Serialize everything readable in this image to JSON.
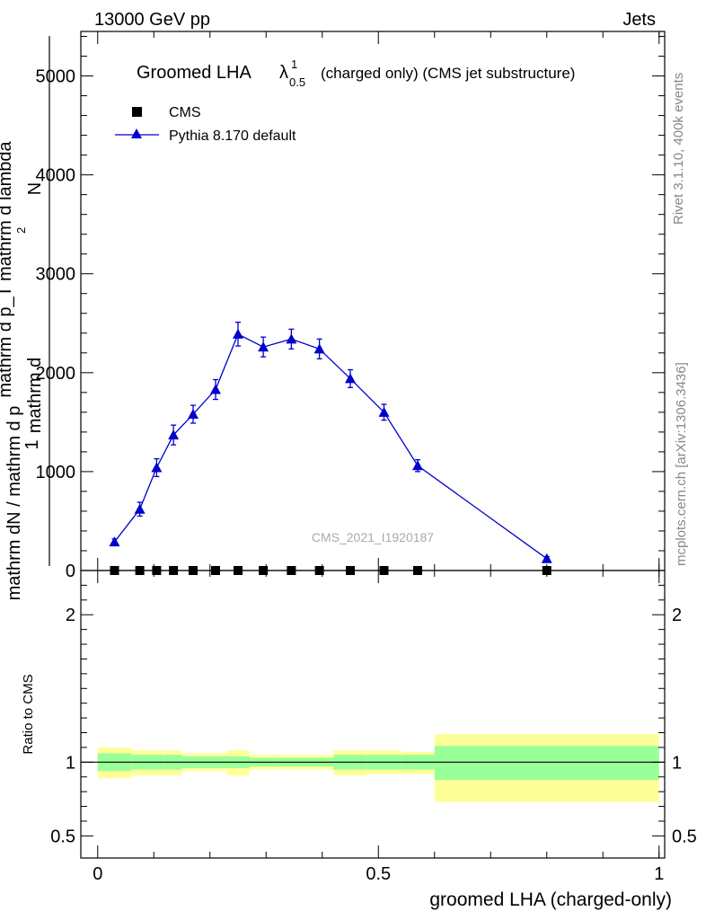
{
  "header": {
    "left": "13000 GeV pp",
    "right": "Jets"
  },
  "side_labels": {
    "rivet": "Rivet 3.1.10,  400k events",
    "mcplots": "mcplots.cern.ch [arXiv:1306.3436]"
  },
  "watermark": "CMS_2021_I1920187",
  "title": {
    "main": "Groomed LHA",
    "lambda": "λ",
    "superscript": "1",
    "subscript": "0.5",
    "suffix": "(charged only) (CMS jet substructure)"
  },
  "legend": [
    {
      "name": "CMS",
      "color": "#000000",
      "marker": "square"
    },
    {
      "name": "Pythia 8.170 default",
      "color": "#0000cc",
      "marker": "triangle"
    }
  ],
  "y_axis_label": {
    "numerator_top": "mathrm d",
    "numerator_sup": "2",
    "numerator_bottom": "N",
    "denominator": "mathrm d p_T mathrm d lambda",
    "denominator_sub": "T",
    "prefix_num": "1",
    "prefix_den": "mathrm dN / mathrm d p",
    "prefix_den2": "mathrm d p",
    "prefix_sub": "T"
  },
  "ratio_y_label": "Ratio to CMS",
  "x_label": "groomed LHA (charged-only)",
  "chart_data": {
    "type": "line",
    "main": {
      "xlim": [
        -0.03,
        1.01
      ],
      "ylim": [
        0,
        5450
      ],
      "y_ticks": [
        0,
        1000,
        2000,
        3000,
        4000,
        5000
      ],
      "y_tick_labels": [
        "0",
        "1000",
        "2000",
        "3000",
        "4000",
        "5000"
      ],
      "series": [
        {
          "name": "CMS",
          "x": [
            0.03,
            0.075,
            0.105,
            0.135,
            0.17,
            0.21,
            0.25,
            0.295,
            0.345,
            0.395,
            0.45,
            0.51,
            0.57,
            0.8
          ],
          "y": [
            0,
            0,
            0,
            0,
            0,
            0,
            0,
            0,
            0,
            0,
            0,
            0,
            0,
            0
          ]
        },
        {
          "name": "Pythia 8.170 default",
          "x": [
            0.03,
            0.075,
            0.105,
            0.135,
            0.17,
            0.21,
            0.25,
            0.295,
            0.345,
            0.395,
            0.45,
            0.51,
            0.57,
            0.8
          ],
          "y": [
            290,
            620,
            1040,
            1370,
            1580,
            1830,
            2390,
            2260,
            2340,
            2240,
            1940,
            1600,
            1060,
            120
          ],
          "yerr": [
            30,
            70,
            90,
            100,
            90,
            100,
            120,
            100,
            100,
            100,
            90,
            80,
            60,
            20
          ]
        }
      ]
    },
    "ratio": {
      "ylim": [
        0.35,
        2.3
      ],
      "y_ticks": [
        0.5,
        1,
        2
      ],
      "y_tick_labels": [
        "0.5",
        "1",
        "2"
      ],
      "x_ticks": [
        0,
        0.5,
        1
      ],
      "x_tick_labels": [
        "0",
        "0.5",
        "1"
      ],
      "bands": [
        {
          "xlo": 0.0,
          "xhi": 0.06,
          "stat_lo": 0.94,
          "stat_hi": 1.06,
          "tot_lo": 0.89,
          "tot_hi": 1.1
        },
        {
          "xlo": 0.06,
          "xhi": 0.09,
          "stat_lo": 0.95,
          "stat_hi": 1.05,
          "tot_lo": 0.91,
          "tot_hi": 1.08
        },
        {
          "xlo": 0.09,
          "xhi": 0.12,
          "stat_lo": 0.95,
          "stat_hi": 1.05,
          "tot_lo": 0.91,
          "tot_hi": 1.08
        },
        {
          "xlo": 0.12,
          "xhi": 0.15,
          "stat_lo": 0.95,
          "stat_hi": 1.05,
          "tot_lo": 0.91,
          "tot_hi": 1.08
        },
        {
          "xlo": 0.15,
          "xhi": 0.19,
          "stat_lo": 0.96,
          "stat_hi": 1.04,
          "tot_lo": 0.94,
          "tot_hi": 1.06
        },
        {
          "xlo": 0.19,
          "xhi": 0.23,
          "stat_lo": 0.96,
          "stat_hi": 1.04,
          "tot_lo": 0.94,
          "tot_hi": 1.06
        },
        {
          "xlo": 0.23,
          "xhi": 0.27,
          "stat_lo": 0.96,
          "stat_hi": 1.04,
          "tot_lo": 0.91,
          "tot_hi": 1.08
        },
        {
          "xlo": 0.27,
          "xhi": 0.32,
          "stat_lo": 0.97,
          "stat_hi": 1.03,
          "tot_lo": 0.95,
          "tot_hi": 1.05
        },
        {
          "xlo": 0.32,
          "xhi": 0.37,
          "stat_lo": 0.97,
          "stat_hi": 1.03,
          "tot_lo": 0.95,
          "tot_hi": 1.05
        },
        {
          "xlo": 0.37,
          "xhi": 0.42,
          "stat_lo": 0.97,
          "stat_hi": 1.03,
          "tot_lo": 0.95,
          "tot_hi": 1.05
        },
        {
          "xlo": 0.42,
          "xhi": 0.48,
          "stat_lo": 0.95,
          "stat_hi": 1.05,
          "tot_lo": 0.91,
          "tot_hi": 1.08
        },
        {
          "xlo": 0.48,
          "xhi": 0.54,
          "stat_lo": 0.95,
          "stat_hi": 1.05,
          "tot_lo": 0.92,
          "tot_hi": 1.08
        },
        {
          "xlo": 0.54,
          "xhi": 0.6,
          "stat_lo": 0.95,
          "stat_hi": 1.05,
          "tot_lo": 0.92,
          "tot_hi": 1.07
        },
        {
          "xlo": 0.6,
          "xhi": 1.0,
          "stat_lo": 0.88,
          "stat_hi": 1.11,
          "tot_lo": 0.73,
          "tot_hi": 1.19
        }
      ]
    },
    "colors": {
      "stat_band": "#99ff99",
      "total_band": "#ffff99",
      "mc": "#0000cc",
      "data": "#000000"
    }
  }
}
